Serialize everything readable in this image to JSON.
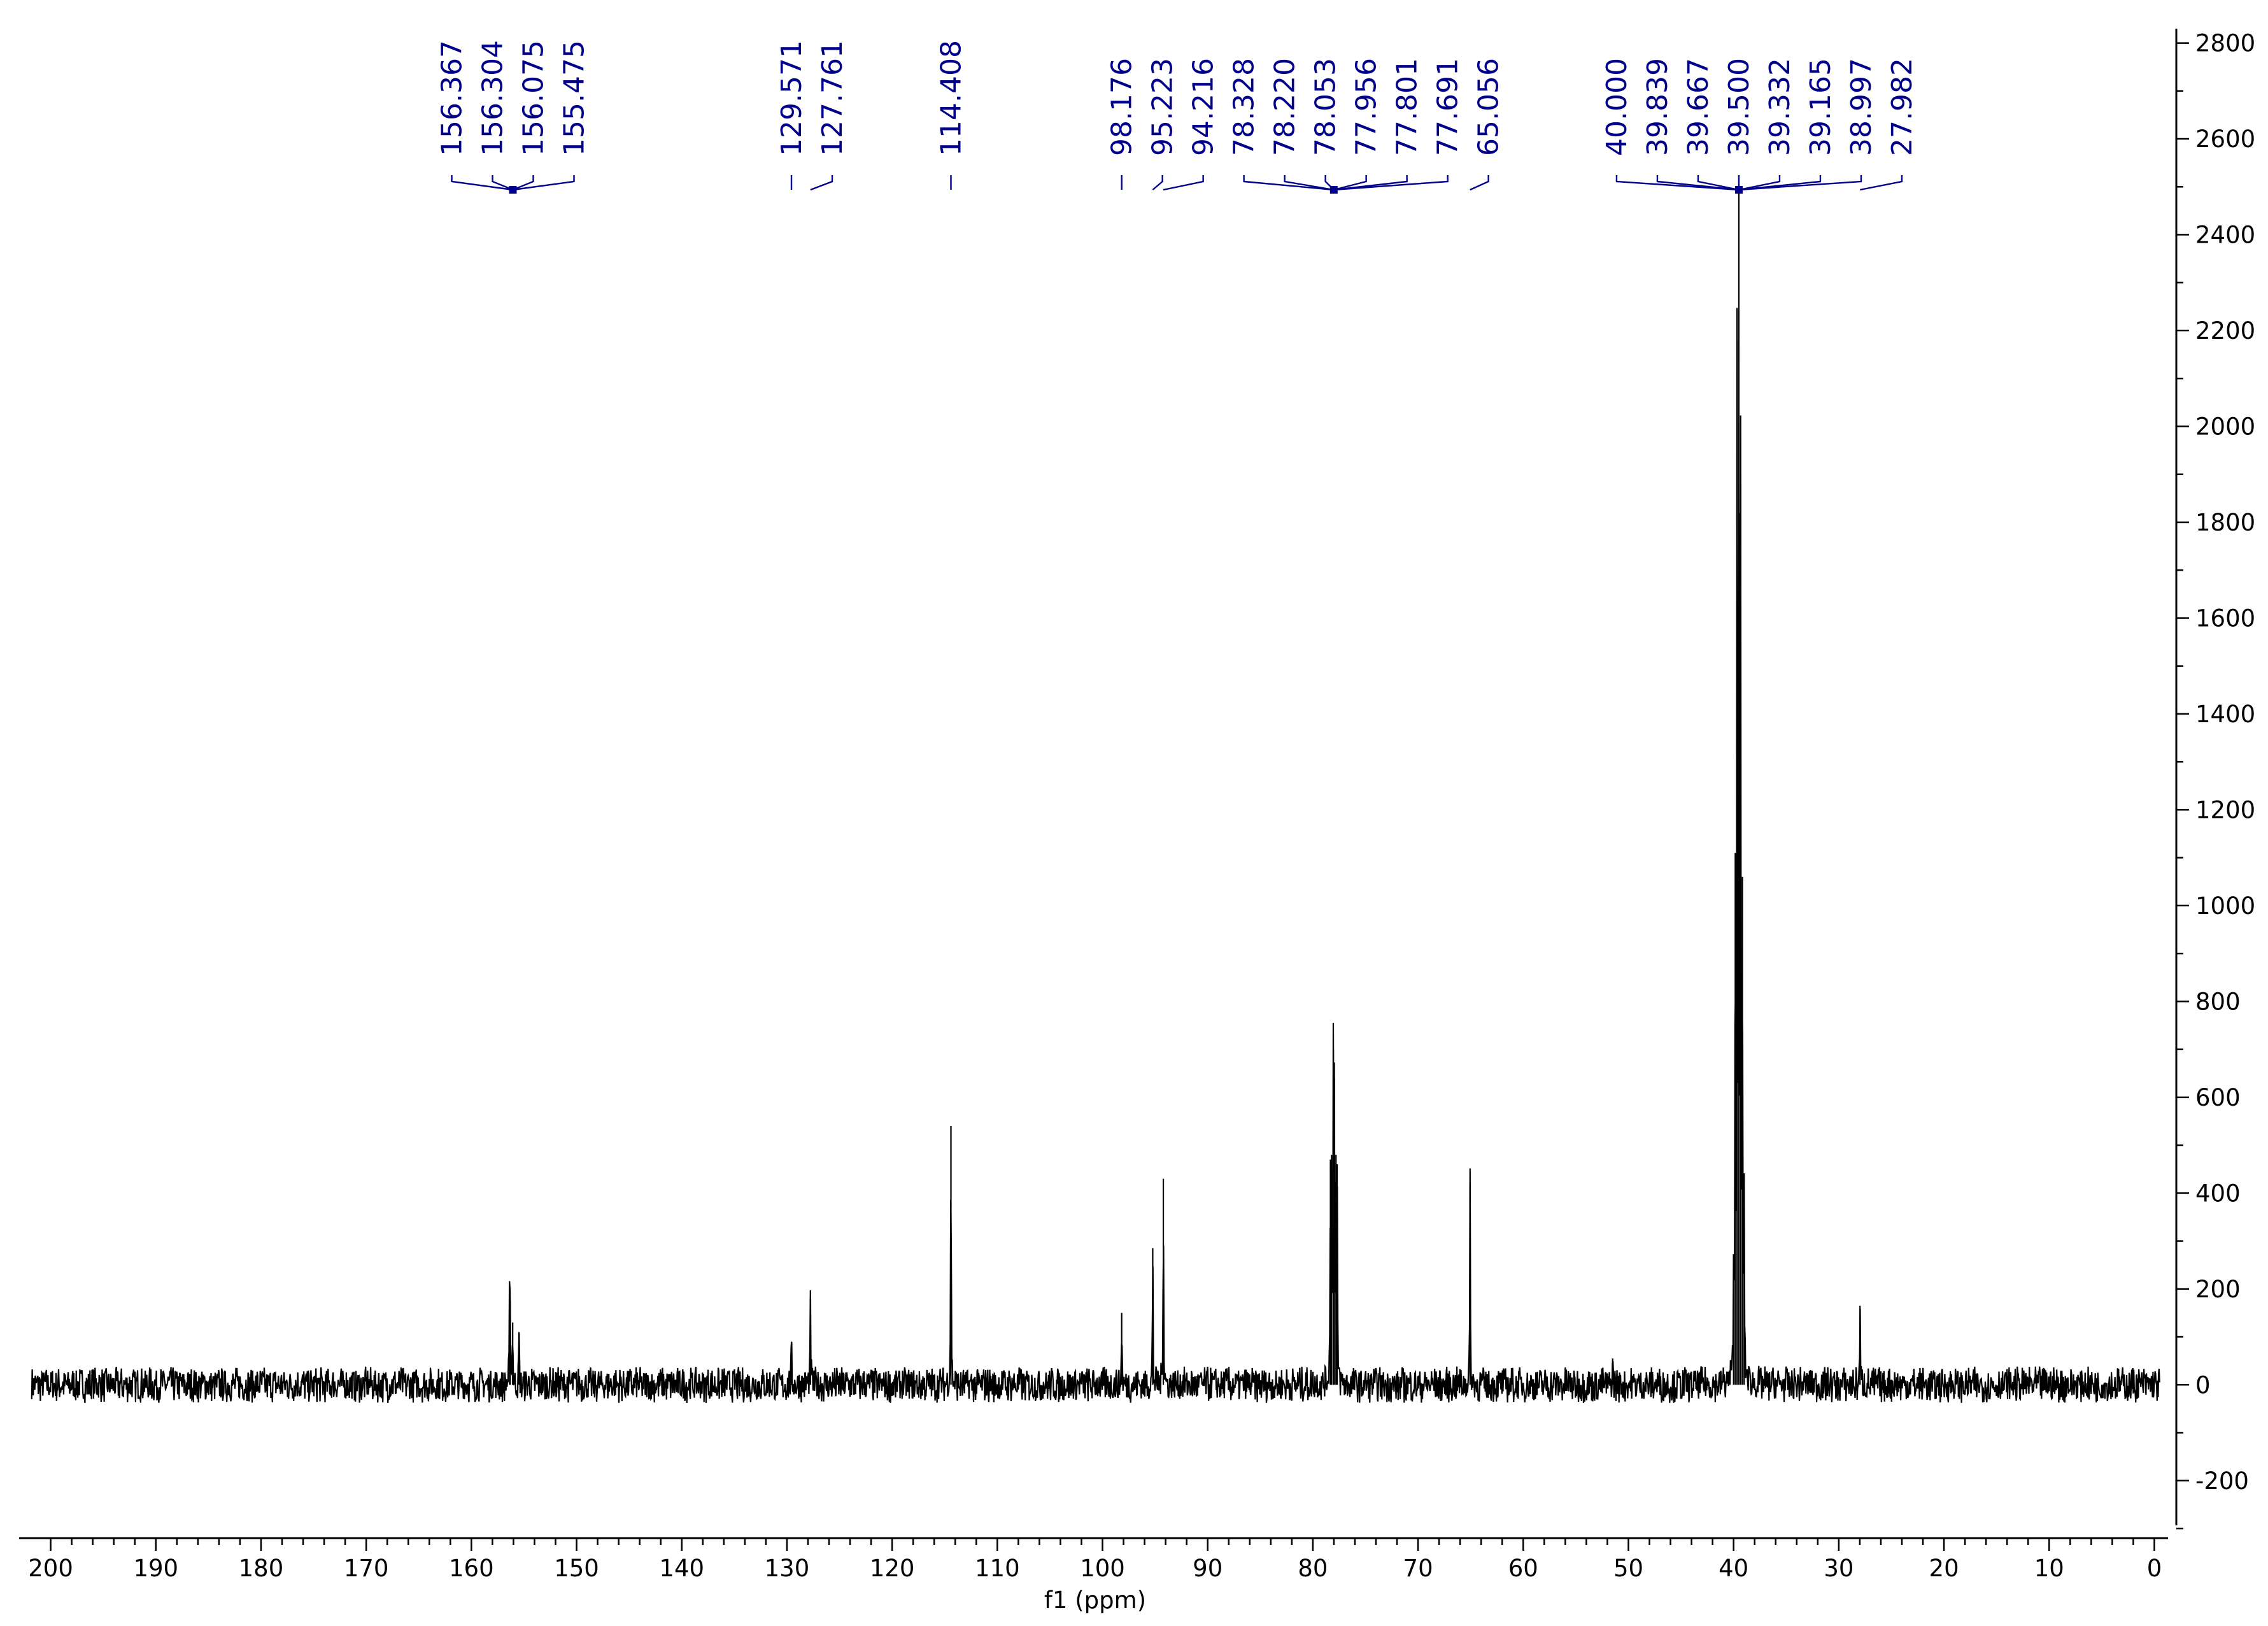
{
  "colors": {
    "spectrum": "#000000",
    "annotation": "#00008b",
    "background": "#ffffff"
  },
  "chart_data": {
    "type": "line",
    "title": "",
    "xlabel": "f1 (ppm)",
    "ylabel": "",
    "xlim": [
      203,
      -1
    ],
    "ylim": [
      -300,
      2830
    ],
    "grid": false,
    "x_ticks": [
      "200",
      "190",
      "180",
      "170",
      "160",
      "150",
      "140",
      "130",
      "120",
      "110",
      "100",
      "90",
      "80",
      "70",
      "60",
      "50",
      "40",
      "30",
      "20",
      "10",
      "0"
    ],
    "y_ticks": [
      "-200",
      "0",
      "200",
      "400",
      "600",
      "800",
      "1000",
      "1200",
      "1400",
      "1600",
      "1800",
      "2000",
      "2200",
      "2400",
      "2600",
      "2800"
    ],
    "noise_amplitude": 40,
    "peaks": [
      {
        "x": 156.367,
        "y": 180
      },
      {
        "x": 156.304,
        "y": 175
      },
      {
        "x": 156.075,
        "y": 130
      },
      {
        "x": 155.475,
        "y": 110
      },
      {
        "x": 129.571,
        "y": 90
      },
      {
        "x": 127.761,
        "y": 180
      },
      {
        "x": 114.408,
        "y": 540
      },
      {
        "x": 98.176,
        "y": 150
      },
      {
        "x": 95.223,
        "y": 285
      },
      {
        "x": 94.216,
        "y": 430
      },
      {
        "x": 78.328,
        "y": 470
      },
      {
        "x": 78.22,
        "y": 480
      },
      {
        "x": 78.053,
        "y": 700
      },
      {
        "x": 77.956,
        "y": 640
      },
      {
        "x": 77.801,
        "y": 480
      },
      {
        "x": 77.691,
        "y": 460
      },
      {
        "x": 65.056,
        "y": 415
      },
      {
        "x": 51.5,
        "y": 55
      },
      {
        "x": 40.0,
        "y": 260
      },
      {
        "x": 39.839,
        "y": 1110
      },
      {
        "x": 39.667,
        "y": 2180
      },
      {
        "x": 39.5,
        "y": 2500
      },
      {
        "x": 39.332,
        "y": 1880
      },
      {
        "x": 39.165,
        "y": 1060
      },
      {
        "x": 38.997,
        "y": 370
      },
      {
        "x": 27.982,
        "y": 165
      }
    ],
    "annotations": [
      {
        "group": [
          {
            "label": "156.367",
            "x": 156.367
          },
          {
            "label": "156.304",
            "x": 156.304
          },
          {
            "label": "156.075",
            "x": 156.075
          },
          {
            "label": "155.475",
            "x": 155.475
          }
        ]
      },
      {
        "group": [
          {
            "label": "129.571",
            "x": 129.571
          }
        ]
      },
      {
        "group": [
          {
            "label": "127.761",
            "x": 127.761
          }
        ]
      },
      {
        "group": [
          {
            "label": "114.408",
            "x": 114.408
          }
        ]
      },
      {
        "group": [
          {
            "label": "98.176",
            "x": 98.176
          }
        ]
      },
      {
        "group": [
          {
            "label": "95.223",
            "x": 95.223
          }
        ]
      },
      {
        "group": [
          {
            "label": "94.216",
            "x": 94.216
          }
        ]
      },
      {
        "group": [
          {
            "label": "78.328",
            "x": 78.328
          },
          {
            "label": "78.220",
            "x": 78.22
          },
          {
            "label": "78.053",
            "x": 78.053
          },
          {
            "label": "77.956",
            "x": 77.956
          },
          {
            "label": "77.801",
            "x": 77.801
          },
          {
            "label": "77.691",
            "x": 77.691
          }
        ]
      },
      {
        "group": [
          {
            "label": "65.056",
            "x": 65.056
          }
        ]
      },
      {
        "group": [
          {
            "label": "40.000",
            "x": 40.0
          },
          {
            "label": "39.839",
            "x": 39.839
          },
          {
            "label": "39.667",
            "x": 39.667
          },
          {
            "label": "39.500",
            "x": 39.5
          },
          {
            "label": "39.332",
            "x": 39.332
          },
          {
            "label": "39.165",
            "x": 39.165
          },
          {
            "label": "38.997",
            "x": 38.997
          }
        ]
      },
      {
        "group": [
          {
            "label": "27.982",
            "x": 27.982
          }
        ]
      }
    ]
  }
}
